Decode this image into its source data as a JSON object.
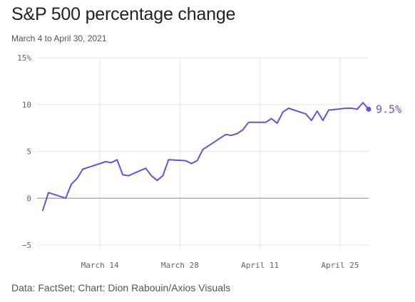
{
  "chart_data": {
    "type": "line",
    "title": "S&P 500 percentage change",
    "subtitle": "March 4 to April 30, 2021",
    "source": "Data: FactSet; Chart: Dion Rabouin/Axios Visuals",
    "y_ticks": [
      "15%",
      "10",
      "5",
      "0",
      "−5"
    ],
    "y_tick_values": [
      15,
      10,
      5,
      0,
      -5
    ],
    "ylim": [
      -5,
      15
    ],
    "x_ticks": [
      "March 14",
      "March 28",
      "April 11",
      "April 25"
    ],
    "x_tick_dates": [
      "2021-03-14",
      "2021-03-28",
      "2021-04-11",
      "2021-04-25"
    ],
    "xlim": [
      "2021-03-04",
      "2021-04-30"
    ],
    "grid": true,
    "line_color": "#6b4fe0",
    "end_label": "9.5%",
    "series": [
      {
        "x": [
          "2021-03-04",
          "2021-03-05",
          "2021-03-08",
          "2021-03-09",
          "2021-03-10",
          "2021-03-11",
          "2021-03-12",
          "2021-03-15",
          "2021-03-16",
          "2021-03-17",
          "2021-03-18",
          "2021-03-19",
          "2021-03-22",
          "2021-03-23",
          "2021-03-24",
          "2021-03-25",
          "2021-03-26",
          "2021-03-29",
          "2021-03-30",
          "2021-03-31",
          "2021-04-01",
          "2021-04-05",
          "2021-04-06",
          "2021-04-07",
          "2021-04-08",
          "2021-04-09",
          "2021-04-12",
          "2021-04-13",
          "2021-04-14",
          "2021-04-15",
          "2021-04-16",
          "2021-04-19",
          "2021-04-20",
          "2021-04-21",
          "2021-04-22",
          "2021-04-23",
          "2021-04-26",
          "2021-04-27",
          "2021-04-28",
          "2021-04-29",
          "2021-04-30"
        ],
        "values": [
          -1.3,
          0.6,
          0.0,
          1.5,
          2.1,
          3.1,
          3.3,
          3.9,
          3.8,
          4.1,
          2.5,
          2.4,
          3.2,
          2.4,
          1.9,
          2.4,
          4.1,
          4.0,
          3.7,
          4.0,
          5.2,
          6.8,
          6.7,
          6.9,
          7.3,
          8.1,
          8.1,
          8.5,
          8.0,
          9.2,
          9.6,
          9.0,
          8.3,
          9.3,
          8.3,
          9.4,
          9.6,
          9.6,
          9.5,
          10.2,
          9.5
        ]
      }
    ]
  },
  "header": {
    "title": "S&P 500 percentage change",
    "subtitle": "March 4 to April 30, 2021"
  },
  "footer": {
    "source": "Data: FactSet; Chart: Dion Rabouin/Axios Visuals"
  }
}
